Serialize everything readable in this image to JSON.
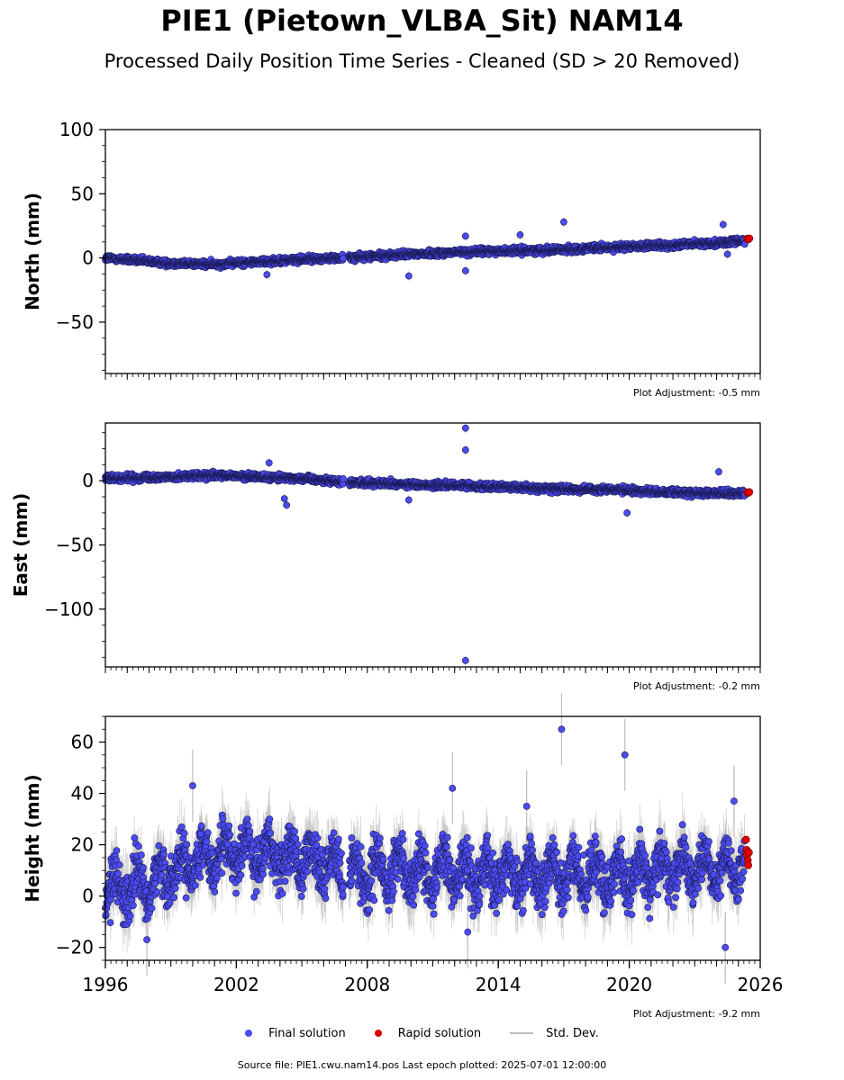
{
  "title": "PIE1 (Pietown_VLBA_Sit) NAM14",
  "subtitle": "Processed Daily Position Time Series - Cleaned (SD > 20 Removed)",
  "footer": "Source file: PIE1.cwu.nam14.pos  Last epoch plotted: 2025-07-01 12:00:00",
  "legend": {
    "final": "Final solution",
    "rapid": "Rapid solution",
    "std": "Std. Dev."
  },
  "colors": {
    "final": "#4b4bf0",
    "rapid": "#e00000",
    "std": "#bbbbbb",
    "edge": "#1a1a55"
  },
  "chart_data": [
    {
      "type": "scatter",
      "ylabel": "North (mm)",
      "adjustment": "Plot Adjustment: -0.5 mm",
      "ylim": [
        -90,
        100
      ],
      "yticks": [
        100,
        50,
        0,
        -50
      ],
      "xlim": [
        1996,
        2026
      ],
      "trend": [
        [
          1996,
          0
        ],
        [
          1999,
          -4
        ],
        [
          2001,
          -5
        ],
        [
          2003,
          -3
        ],
        [
          2005,
          -1
        ],
        [
          2007,
          0
        ],
        [
          2010,
          3
        ],
        [
          2013,
          5
        ],
        [
          2016,
          6
        ],
        [
          2019,
          8
        ],
        [
          2022,
          10
        ],
        [
          2024.5,
          12
        ],
        [
          2025.5,
          14
        ]
      ],
      "spread": 1.8,
      "outliers": [
        [
          2009.9,
          -14
        ],
        [
          2012.5,
          -10
        ],
        [
          2012.5,
          17
        ],
        [
          2017,
          28
        ],
        [
          2003.4,
          -13
        ],
        [
          2024.3,
          26
        ],
        [
          2024.5,
          3
        ],
        [
          2015,
          18
        ]
      ],
      "rapid": [
        [
          2025.4,
          15
        ],
        [
          2025.45,
          14.5
        ],
        [
          2025.5,
          15.2
        ]
      ]
    },
    {
      "type": "scatter",
      "ylabel": "East (mm)",
      "adjustment": "Plot Adjustment: -0.2 mm",
      "ylim": [
        -145,
        45
      ],
      "yticks": [
        0,
        -50,
        -100
      ],
      "xlim": [
        1996,
        2026
      ],
      "trend": [
        [
          1996,
          2
        ],
        [
          1999,
          3
        ],
        [
          2001,
          4
        ],
        [
          2003,
          3
        ],
        [
          2005,
          2
        ],
        [
          2007,
          -1
        ],
        [
          2010,
          -3
        ],
        [
          2013,
          -4
        ],
        [
          2016,
          -6
        ],
        [
          2019,
          -7
        ],
        [
          2022,
          -9
        ],
        [
          2025.5,
          -10
        ]
      ],
      "spread": 1.8,
      "outliers": [
        [
          2012.5,
          41
        ],
        [
          2012.5,
          24
        ],
        [
          2012.5,
          -140
        ],
        [
          2004.2,
          -14
        ],
        [
          2004.3,
          -19
        ],
        [
          2003.5,
          14
        ],
        [
          2019.9,
          -25
        ],
        [
          2009.9,
          -15
        ],
        [
          2024.1,
          7
        ]
      ],
      "rapid": [
        [
          2025.4,
          -9
        ],
        [
          2025.45,
          -9.5
        ],
        [
          2025.5,
          -8.8
        ]
      ]
    },
    {
      "type": "scatter",
      "ylabel": "Height (mm)",
      "adjustment": "Plot Adjustment: -9.2 mm",
      "ylim": [
        -25,
        70
      ],
      "yticks": [
        60,
        40,
        20,
        0,
        -20
      ],
      "xticks": [
        1996,
        2002,
        2008,
        2014,
        2020,
        2026
      ],
      "xlim": [
        1996,
        2026
      ],
      "trend": [
        [
          1996,
          2
        ],
        [
          1998,
          5
        ],
        [
          2000,
          14
        ],
        [
          2002,
          18
        ],
        [
          2004,
          16
        ],
        [
          2006,
          13
        ],
        [
          2007.2,
          9
        ],
        [
          2010,
          10
        ],
        [
          2013,
          8
        ],
        [
          2016,
          8
        ],
        [
          2019,
          8
        ],
        [
          2022,
          10
        ],
        [
          2025.5,
          12
        ]
      ],
      "spread": 7,
      "seasonal": 6,
      "outliers": [
        [
          2016.9,
          65
        ],
        [
          2019.8,
          55
        ],
        [
          2011.9,
          42
        ],
        [
          2000,
          43
        ],
        [
          2012.6,
          -14
        ],
        [
          2024.4,
          -20
        ],
        [
          2024.8,
          37
        ],
        [
          2015.3,
          35
        ],
        [
          1997.9,
          -17
        ]
      ],
      "rapid": [
        [
          2025.35,
          22
        ],
        [
          2025.38,
          18
        ],
        [
          2025.4,
          16
        ],
        [
          2025.43,
          14
        ],
        [
          2025.45,
          12
        ],
        [
          2025.48,
          17
        ]
      ]
    }
  ]
}
